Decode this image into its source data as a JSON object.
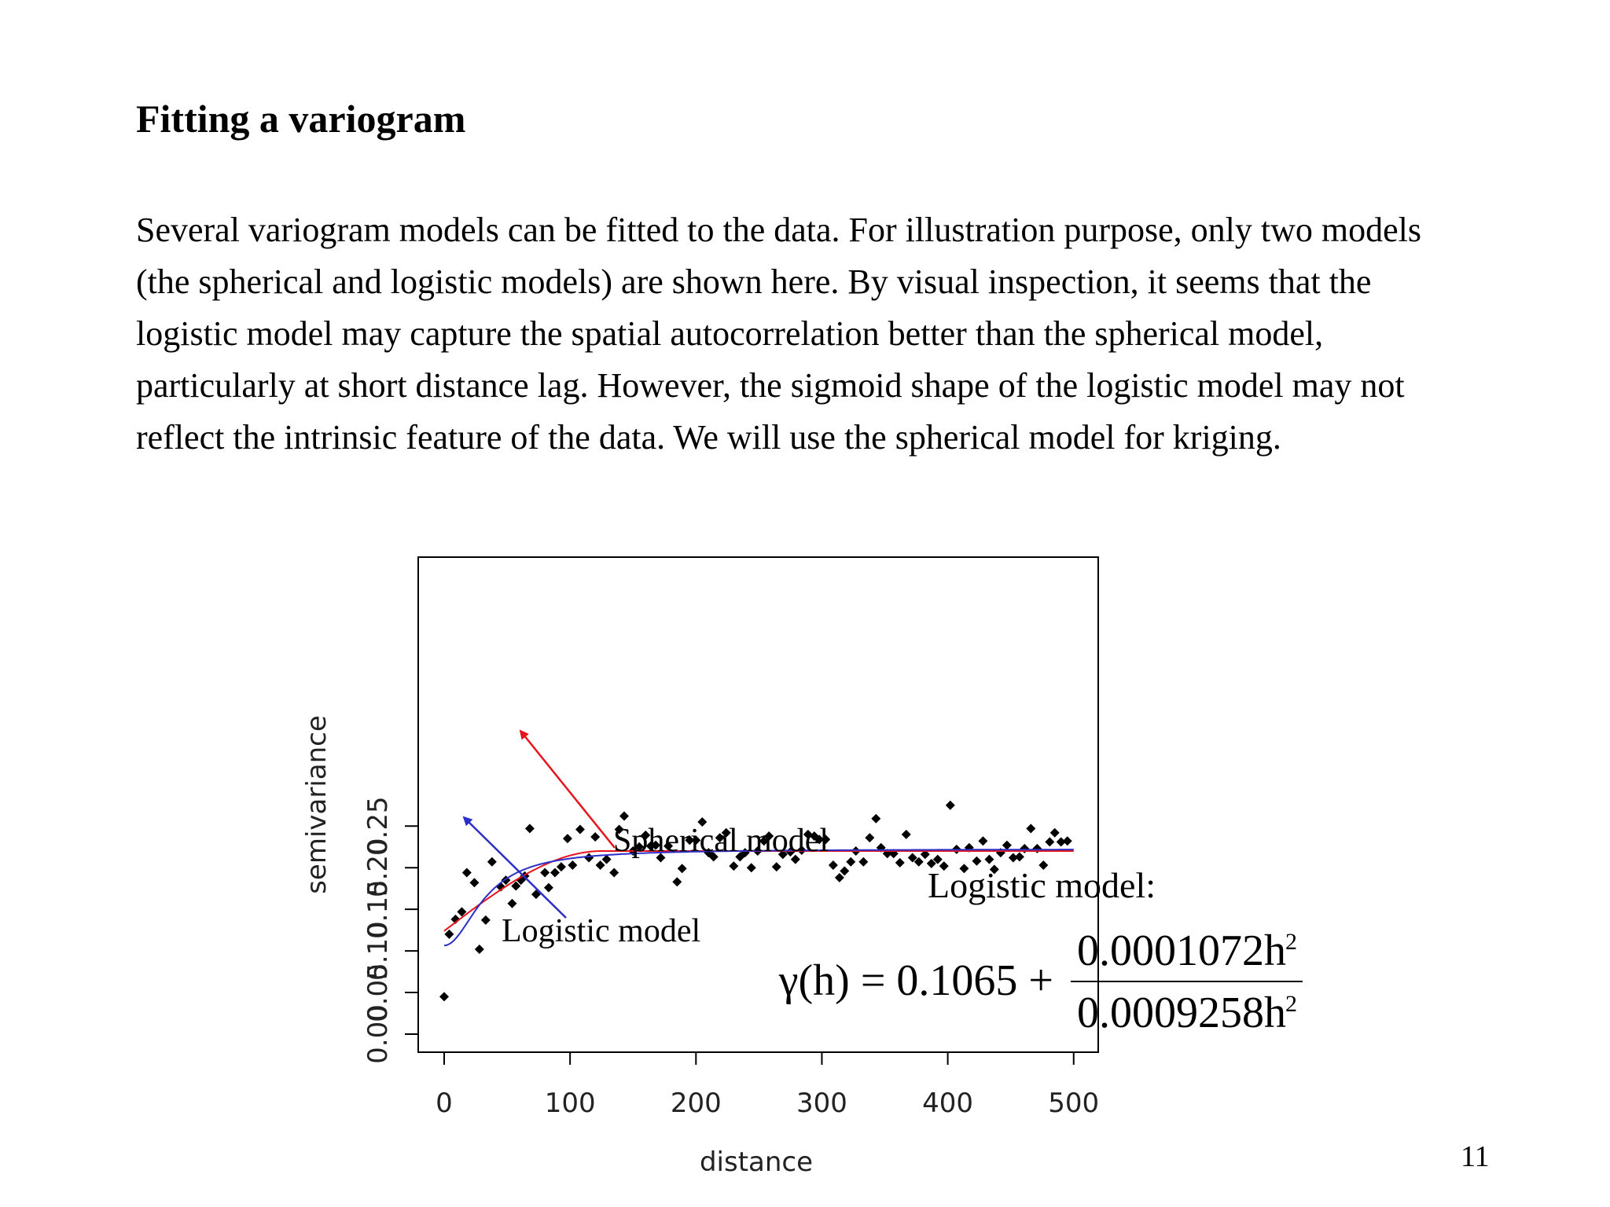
{
  "title": "Fitting a variogram",
  "paragraph": [
    "Several variogram models can be fitted to the data. For illustration purpose, only two models",
    "(the spherical and logistic models) are shown here. By visual inspection, it seems that the",
    "logistic model may capture the spatial autocorrelation better than the spherical model,",
    "particularly at short distance lag. However, the sigmoid shape of the logistic model may not",
    "reflect the intrinsic feature of the data. We will use the spherical model for kriging."
  ],
  "page_number": "11",
  "annotations": {
    "spherical_label": "Spherical model",
    "logistic_label": "Logistic model",
    "logistic_heading": "Logistic model:"
  },
  "equation": {
    "lhs": "γ(h) = 0.1065 +",
    "numerator": "0.0001072h",
    "denominator": "0.0009258h",
    "exponent": "2"
  },
  "colors": {
    "spherical": "#e8141b",
    "logistic": "#2b2fc8",
    "points": "#000000"
  },
  "chart_data": {
    "type": "scatter",
    "xlabel": "distance",
    "ylabel": "semivariance",
    "xlim": [
      -20,
      520
    ],
    "ylim": [
      -0.012,
      0.286
    ],
    "xticks": [
      "0",
      "100",
      "200",
      "300",
      "400",
      "500"
    ],
    "yticks": [
      "0.00",
      "0.05",
      "0.10",
      "0.15",
      "0.20",
      "0.25"
    ],
    "points": [
      [
        0,
        0.045
      ],
      [
        4,
        0.12
      ],
      [
        9,
        0.138
      ],
      [
        14,
        0.147
      ],
      [
        18,
        0.194
      ],
      [
        24,
        0.182
      ],
      [
        28,
        0.102
      ],
      [
        33,
        0.137
      ],
      [
        38,
        0.207
      ],
      [
        45,
        0.177
      ],
      [
        49,
        0.185
      ],
      [
        54,
        0.157
      ],
      [
        57,
        0.178
      ],
      [
        61,
        0.185
      ],
      [
        64,
        0.19
      ],
      [
        68,
        0.247
      ],
      [
        73,
        0.168
      ],
      [
        80,
        0.194
      ],
      [
        83,
        0.176
      ],
      [
        88,
        0.194
      ],
      [
        93,
        0.201
      ],
      [
        98,
        0.235
      ],
      [
        102,
        0.203
      ],
      [
        108,
        0.246
      ],
      [
        115,
        0.212
      ],
      [
        120,
        0.237
      ],
      [
        124,
        0.203
      ],
      [
        129,
        0.21
      ],
      [
        135,
        0.194
      ],
      [
        139,
        0.246
      ],
      [
        143,
        0.262
      ],
      [
        150,
        0.22
      ],
      [
        155,
        0.225
      ],
      [
        160,
        0.239
      ],
      [
        164,
        0.226
      ],
      [
        168,
        0.227
      ],
      [
        172,
        0.212
      ],
      [
        178,
        0.226
      ],
      [
        185,
        0.183
      ],
      [
        189,
        0.199
      ],
      [
        195,
        0.233
      ],
      [
        200,
        0.233
      ],
      [
        205,
        0.255
      ],
      [
        210,
        0.218
      ],
      [
        214,
        0.213
      ],
      [
        219,
        0.236
      ],
      [
        224,
        0.242
      ],
      [
        230,
        0.202
      ],
      [
        235,
        0.213
      ],
      [
        239,
        0.218
      ],
      [
        244,
        0.2
      ],
      [
        249,
        0.22
      ],
      [
        254,
        0.232
      ],
      [
        258,
        0.238
      ],
      [
        264,
        0.201
      ],
      [
        269,
        0.216
      ],
      [
        275,
        0.219
      ],
      [
        279,
        0.21
      ],
      [
        284,
        0.221
      ],
      [
        289,
        0.24
      ],
      [
        294,
        0.238
      ],
      [
        298,
        0.234
      ],
      [
        303,
        0.234
      ],
      [
        309,
        0.203
      ],
      [
        314,
        0.188
      ],
      [
        318,
        0.196
      ],
      [
        323,
        0.207
      ],
      [
        327,
        0.22
      ],
      [
        333,
        0.207
      ],
      [
        338,
        0.236
      ],
      [
        343,
        0.259
      ],
      [
        347,
        0.224
      ],
      [
        352,
        0.217
      ],
      [
        357,
        0.217
      ],
      [
        362,
        0.206
      ],
      [
        367,
        0.24
      ],
      [
        372,
        0.212
      ],
      [
        377,
        0.207
      ],
      [
        382,
        0.216
      ],
      [
        387,
        0.205
      ],
      [
        392,
        0.21
      ],
      [
        397,
        0.202
      ],
      [
        402,
        0.275
      ],
      [
        407,
        0.222
      ],
      [
        413,
        0.199
      ],
      [
        417,
        0.224
      ],
      [
        423,
        0.208
      ],
      [
        428,
        0.232
      ],
      [
        433,
        0.21
      ],
      [
        437,
        0.198
      ],
      [
        442,
        0.218
      ],
      [
        447,
        0.227
      ],
      [
        452,
        0.212
      ],
      [
        457,
        0.213
      ],
      [
        461,
        0.223
      ],
      [
        466,
        0.247
      ],
      [
        471,
        0.223
      ],
      [
        476,
        0.203
      ],
      [
        481,
        0.231
      ],
      [
        485,
        0.242
      ],
      [
        490,
        0.231
      ],
      [
        495,
        0.232
      ]
    ],
    "series": [
      {
        "model": "spherical",
        "nugget": 0.124,
        "sill": 0.22,
        "range": 125
      },
      {
        "model": "logistic",
        "nugget": 0.1065,
        "a": 0.0001072,
        "b": 0.0009258
      }
    ],
    "grid": false,
    "legend": "none"
  }
}
